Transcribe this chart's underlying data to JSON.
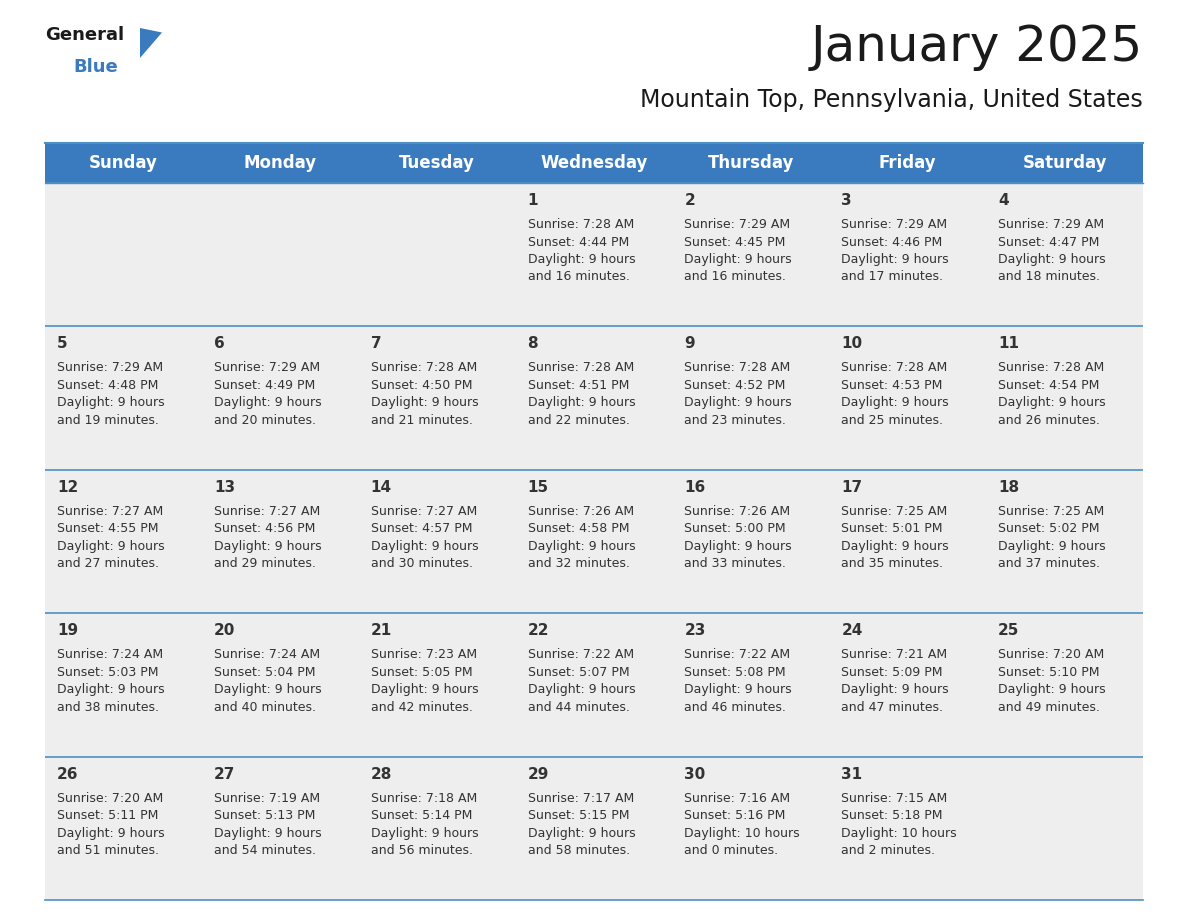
{
  "title": "January 2025",
  "subtitle": "Mountain Top, Pennsylvania, United States",
  "header_color": "#3a7bbf",
  "header_text_color": "#ffffff",
  "bg_color": "#ffffff",
  "cell_bg": "#eeeeee",
  "separator_color": "#4a90c4",
  "text_color": "#333333",
  "day_headers": [
    "Sunday",
    "Monday",
    "Tuesday",
    "Wednesday",
    "Thursday",
    "Friday",
    "Saturday"
  ],
  "title_fontsize": 36,
  "subtitle_fontsize": 17,
  "header_fontsize": 12,
  "cell_day_fontsize": 11,
  "cell_text_fontsize": 9,
  "logo_general_color": "#1a1a1a",
  "logo_blue_color": "#3a7bbf",
  "logo_triangle_color": "#3a7bbf",
  "calendar_data": [
    [
      {
        "day": null,
        "sunrise": null,
        "sunset": null,
        "daylight": null
      },
      {
        "day": null,
        "sunrise": null,
        "sunset": null,
        "daylight": null
      },
      {
        "day": null,
        "sunrise": null,
        "sunset": null,
        "daylight": null
      },
      {
        "day": 1,
        "sunrise": "7:28 AM",
        "sunset": "4:44 PM",
        "daylight": "9 hours and 16 minutes."
      },
      {
        "day": 2,
        "sunrise": "7:29 AM",
        "sunset": "4:45 PM",
        "daylight": "9 hours and 16 minutes."
      },
      {
        "day": 3,
        "sunrise": "7:29 AM",
        "sunset": "4:46 PM",
        "daylight": "9 hours and 17 minutes."
      },
      {
        "day": 4,
        "sunrise": "7:29 AM",
        "sunset": "4:47 PM",
        "daylight": "9 hours and 18 minutes."
      }
    ],
    [
      {
        "day": 5,
        "sunrise": "7:29 AM",
        "sunset": "4:48 PM",
        "daylight": "9 hours and 19 minutes."
      },
      {
        "day": 6,
        "sunrise": "7:29 AM",
        "sunset": "4:49 PM",
        "daylight": "9 hours and 20 minutes."
      },
      {
        "day": 7,
        "sunrise": "7:28 AM",
        "sunset": "4:50 PM",
        "daylight": "9 hours and 21 minutes."
      },
      {
        "day": 8,
        "sunrise": "7:28 AM",
        "sunset": "4:51 PM",
        "daylight": "9 hours and 22 minutes."
      },
      {
        "day": 9,
        "sunrise": "7:28 AM",
        "sunset": "4:52 PM",
        "daylight": "9 hours and 23 minutes."
      },
      {
        "day": 10,
        "sunrise": "7:28 AM",
        "sunset": "4:53 PM",
        "daylight": "9 hours and 25 minutes."
      },
      {
        "day": 11,
        "sunrise": "7:28 AM",
        "sunset": "4:54 PM",
        "daylight": "9 hours and 26 minutes."
      }
    ],
    [
      {
        "day": 12,
        "sunrise": "7:27 AM",
        "sunset": "4:55 PM",
        "daylight": "9 hours and 27 minutes."
      },
      {
        "day": 13,
        "sunrise": "7:27 AM",
        "sunset": "4:56 PM",
        "daylight": "9 hours and 29 minutes."
      },
      {
        "day": 14,
        "sunrise": "7:27 AM",
        "sunset": "4:57 PM",
        "daylight": "9 hours and 30 minutes."
      },
      {
        "day": 15,
        "sunrise": "7:26 AM",
        "sunset": "4:58 PM",
        "daylight": "9 hours and 32 minutes."
      },
      {
        "day": 16,
        "sunrise": "7:26 AM",
        "sunset": "5:00 PM",
        "daylight": "9 hours and 33 minutes."
      },
      {
        "day": 17,
        "sunrise": "7:25 AM",
        "sunset": "5:01 PM",
        "daylight": "9 hours and 35 minutes."
      },
      {
        "day": 18,
        "sunrise": "7:25 AM",
        "sunset": "5:02 PM",
        "daylight": "9 hours and 37 minutes."
      }
    ],
    [
      {
        "day": 19,
        "sunrise": "7:24 AM",
        "sunset": "5:03 PM",
        "daylight": "9 hours and 38 minutes."
      },
      {
        "day": 20,
        "sunrise": "7:24 AM",
        "sunset": "5:04 PM",
        "daylight": "9 hours and 40 minutes."
      },
      {
        "day": 21,
        "sunrise": "7:23 AM",
        "sunset": "5:05 PM",
        "daylight": "9 hours and 42 minutes."
      },
      {
        "day": 22,
        "sunrise": "7:22 AM",
        "sunset": "5:07 PM",
        "daylight": "9 hours and 44 minutes."
      },
      {
        "day": 23,
        "sunrise": "7:22 AM",
        "sunset": "5:08 PM",
        "daylight": "9 hours and 46 minutes."
      },
      {
        "day": 24,
        "sunrise": "7:21 AM",
        "sunset": "5:09 PM",
        "daylight": "9 hours and 47 minutes."
      },
      {
        "day": 25,
        "sunrise": "7:20 AM",
        "sunset": "5:10 PM",
        "daylight": "9 hours and 49 minutes."
      }
    ],
    [
      {
        "day": 26,
        "sunrise": "7:20 AM",
        "sunset": "5:11 PM",
        "daylight": "9 hours and 51 minutes."
      },
      {
        "day": 27,
        "sunrise": "7:19 AM",
        "sunset": "5:13 PM",
        "daylight": "9 hours and 54 minutes."
      },
      {
        "day": 28,
        "sunrise": "7:18 AM",
        "sunset": "5:14 PM",
        "daylight": "9 hours and 56 minutes."
      },
      {
        "day": 29,
        "sunrise": "7:17 AM",
        "sunset": "5:15 PM",
        "daylight": "9 hours and 58 minutes."
      },
      {
        "day": 30,
        "sunrise": "7:16 AM",
        "sunset": "5:16 PM",
        "daylight": "10 hours and 0 minutes."
      },
      {
        "day": 31,
        "sunrise": "7:15 AM",
        "sunset": "5:18 PM",
        "daylight": "10 hours and 2 minutes."
      },
      {
        "day": null,
        "sunrise": null,
        "sunset": null,
        "daylight": null
      }
    ]
  ]
}
